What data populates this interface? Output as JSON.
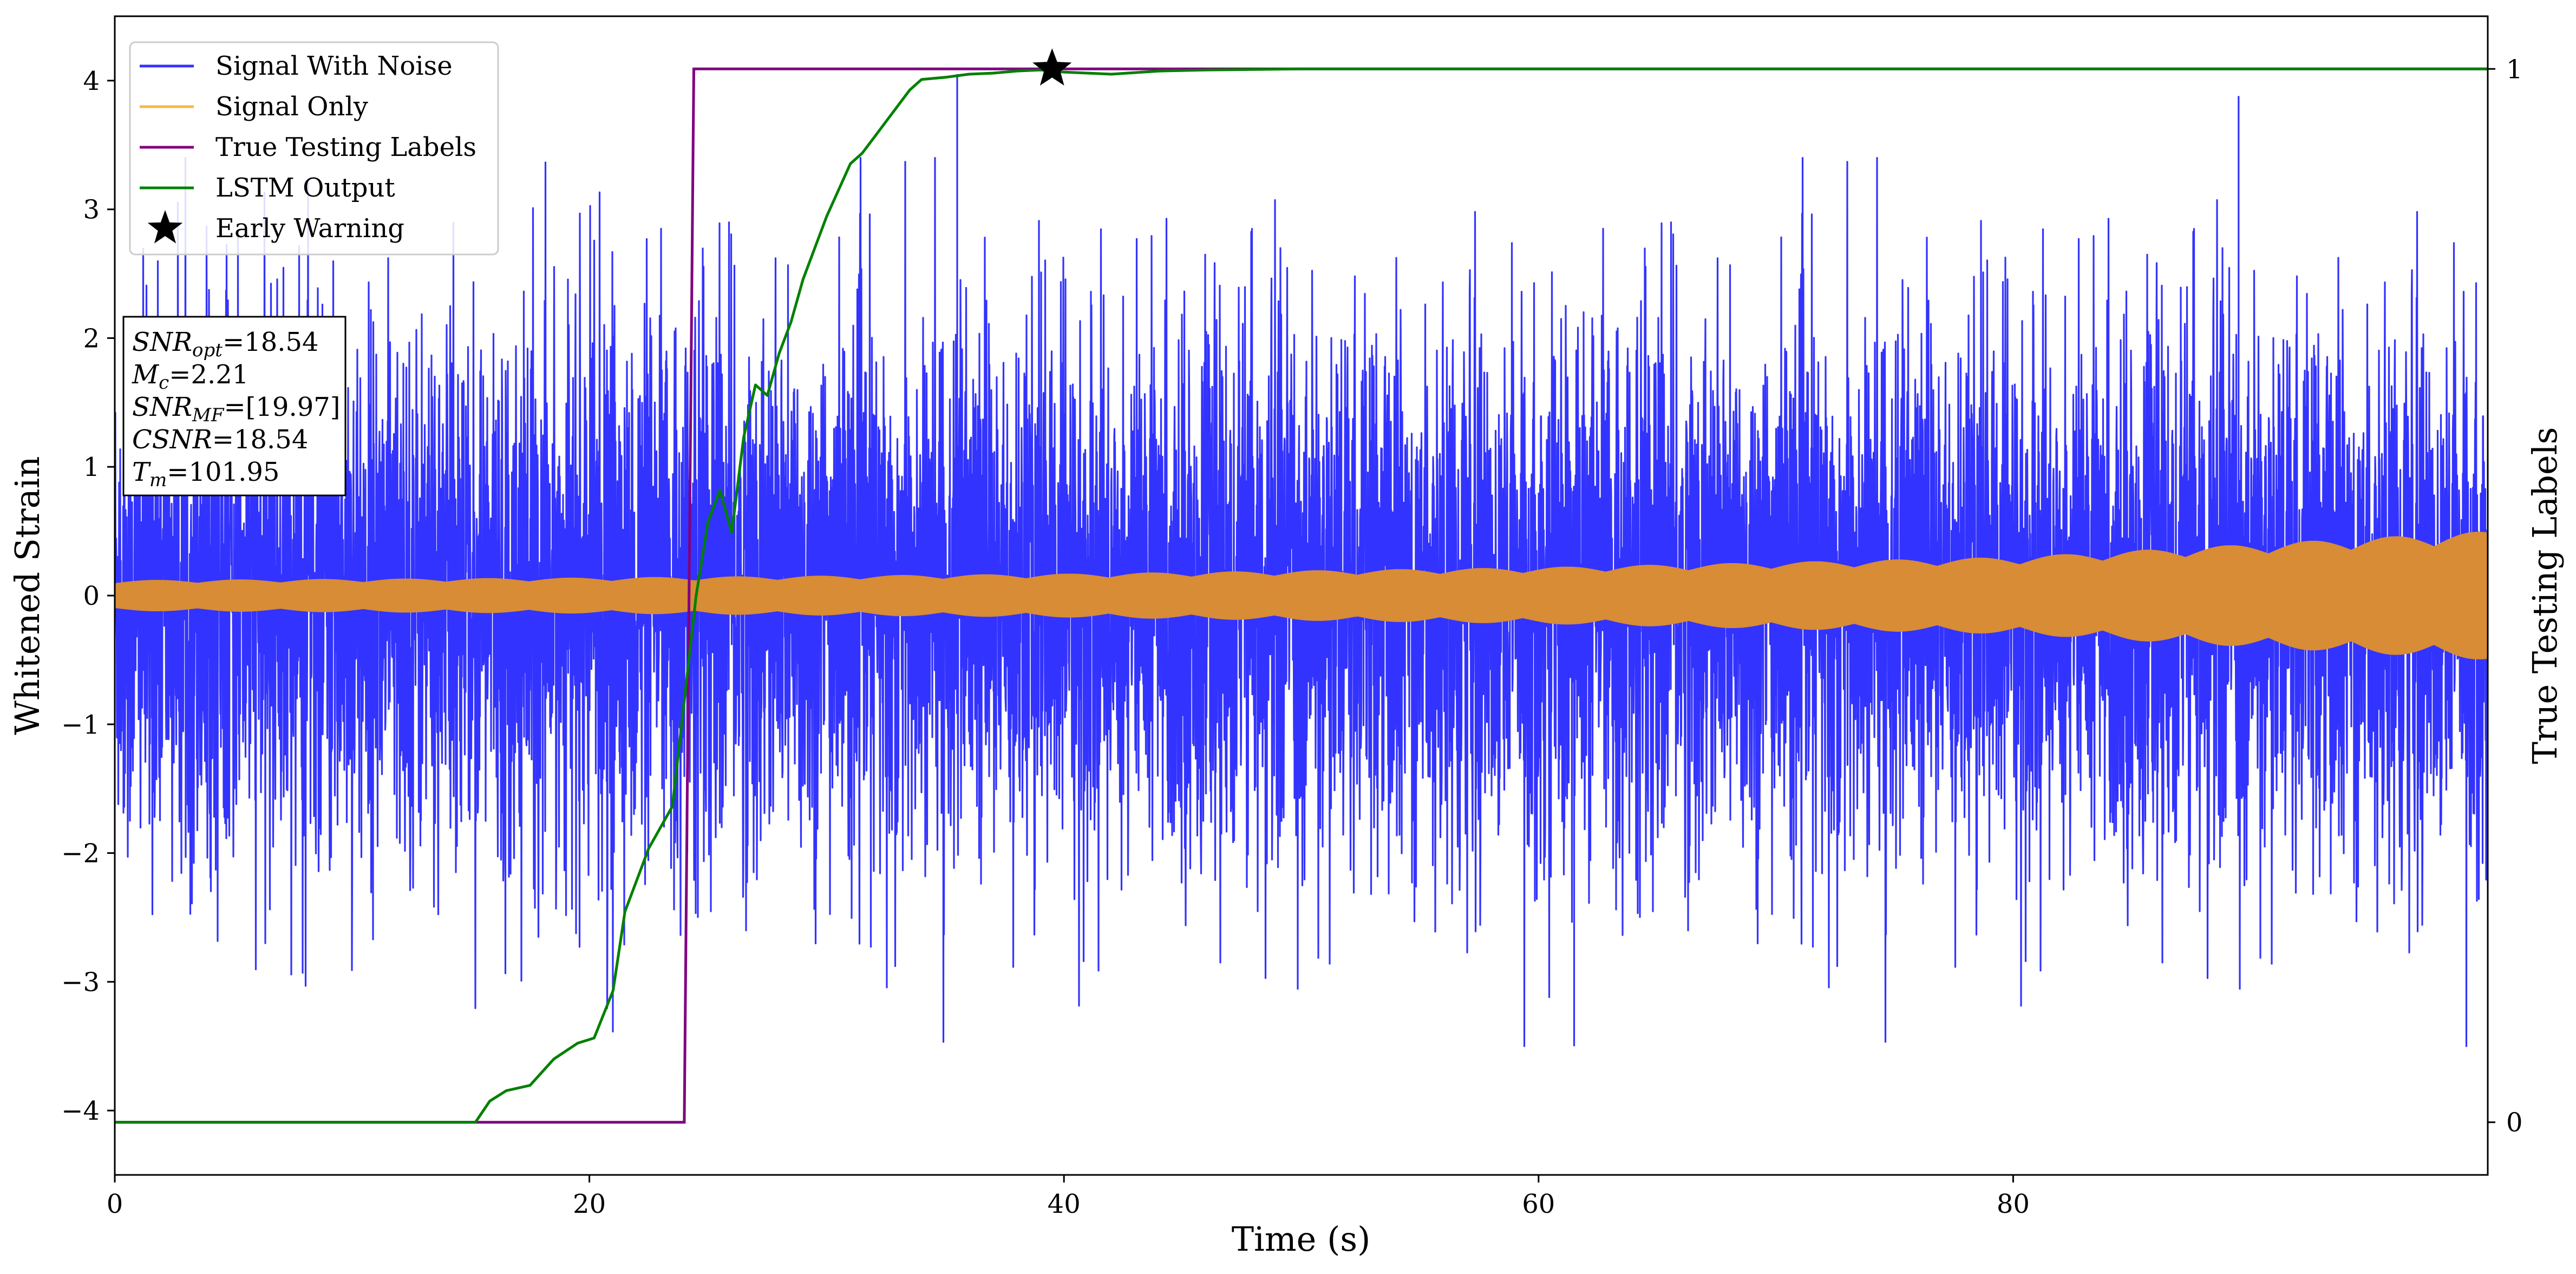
{
  "chart_data": {
    "type": "line",
    "xlabel": "Time (s)",
    "ylabel": "Whitened Strain",
    "y2label": "True Testing Labels",
    "xlim": [
      0,
      100
    ],
    "ylim": [
      -4.5,
      4.5
    ],
    "y2lim": [
      -0.05,
      1.05
    ],
    "x_ticks": [
      0,
      20,
      40,
      60,
      80
    ],
    "y_ticks": [
      -4,
      -3,
      -2,
      -1,
      0,
      1,
      2,
      3,
      4
    ],
    "y2_ticks": [
      0,
      1
    ],
    "grid": false,
    "legend_position": "top-left",
    "series": [
      {
        "name": "Signal With Noise",
        "axis": "left",
        "color": "#3333ff",
        "description_ranges": {
          "typical_amplitude": 1.2,
          "peak_max": 4.05,
          "peak_min": -3.5
        }
      },
      {
        "name": "Signal Only",
        "axis": "left",
        "color": "#f5b942",
        "envelope": {
          "x": [
            0,
            20,
            40,
            60,
            80,
            100
          ],
          "amplitude": [
            0.12,
            0.14,
            0.17,
            0.22,
            0.3,
            0.5
          ]
        }
      },
      {
        "name": "True Testing Labels",
        "axis": "right",
        "color": "#800080",
        "x": [
          0,
          24,
          24.4,
          100
        ],
        "values": [
          0,
          0,
          1,
          1
        ]
      },
      {
        "name": "LSTM Output",
        "axis": "right",
        "color": "#008000",
        "x": [
          0,
          15.2,
          15.8,
          16.5,
          17.5,
          18.5,
          19.5,
          20.2,
          21,
          21.5,
          22,
          22.5,
          23,
          23.5,
          24,
          24.5,
          25,
          25.5,
          26,
          26.5,
          27,
          27.5,
          28,
          28.5,
          29,
          29.5,
          30,
          30.5,
          31,
          31.5,
          32,
          32.5,
          33,
          33.5,
          34,
          35,
          36,
          37,
          38,
          39,
          40,
          42,
          44,
          46,
          50,
          60,
          80,
          100
        ],
        "values": [
          0,
          0,
          0.02,
          0.03,
          0.035,
          0.06,
          0.075,
          0.08,
          0.125,
          0.2,
          0.23,
          0.26,
          0.28,
          0.3,
          0.4,
          0.5,
          0.57,
          0.6,
          0.56,
          0.65,
          0.7,
          0.69,
          0.73,
          0.76,
          0.8,
          0.83,
          0.86,
          0.885,
          0.91,
          0.92,
          0.935,
          0.95,
          0.965,
          0.98,
          0.99,
          0.992,
          0.995,
          0.996,
          0.998,
          0.999,
          0.997,
          0.995,
          0.998,
          0.999,
          1,
          1,
          1,
          1
        ]
      }
    ],
    "markers": [
      {
        "name": "Early Warning",
        "symbol": "star",
        "x": 39.5,
        "y2": 1,
        "color": "#000000"
      }
    ],
    "legend": [
      {
        "label": "Signal With Noise",
        "kind": "line",
        "color": "#3333ff"
      },
      {
        "label": "Signal Only",
        "kind": "line",
        "color": "#f5b942"
      },
      {
        "label": "True Testing Labels",
        "kind": "line",
        "color": "#800080"
      },
      {
        "label": "LSTM Output",
        "kind": "line",
        "color": "#008000"
      },
      {
        "label": "Early Warning",
        "kind": "star",
        "color": "#000000"
      }
    ],
    "annotation": [
      {
        "label_main": "SNR",
        "label_sub": "opt",
        "value": "=18.54"
      },
      {
        "label_main": "M",
        "label_sub": "c",
        "value": "=2.21"
      },
      {
        "label_main": "SNR",
        "label_sub": "MF",
        "value": "=[19.97]"
      },
      {
        "label_main": "CSNR",
        "label_sub": "",
        "value": "=18.54"
      },
      {
        "label_main": "T",
        "label_sub": "m",
        "value": "=101.95"
      }
    ]
  }
}
